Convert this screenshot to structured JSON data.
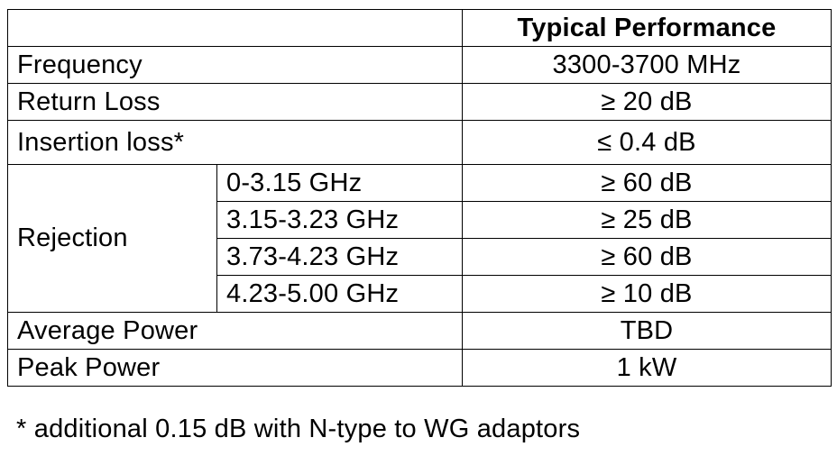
{
  "table": {
    "header": {
      "blank": "",
      "performance": "Typical Performance"
    },
    "rows": {
      "frequency": {
        "label": "Frequency",
        "value": "3300-3700 MHz"
      },
      "return_loss": {
        "label": "Return Loss",
        "value": "≥ 20 dB"
      },
      "insertion_loss": {
        "label": "Insertion loss*",
        "value": "≤ 0.4 dB"
      },
      "rejection": {
        "label": "Rejection",
        "bands": [
          {
            "range": "0-3.15 GHz",
            "value": "≥ 60 dB"
          },
          {
            "range": "3.15-3.23 GHz",
            "value": "≥ 25 dB"
          },
          {
            "range": "3.73-4.23 GHz",
            "value": "≥ 60 dB"
          },
          {
            "range": "4.23-5.00 GHz",
            "value": "≥ 10 dB"
          }
        ]
      },
      "average_power": {
        "label": "Average Power",
        "value": "TBD"
      },
      "peak_power": {
        "label": "Peak Power",
        "value": "1 kW"
      }
    }
  },
  "footnote": "* additional 0.15 dB with N-type to WG adaptors"
}
